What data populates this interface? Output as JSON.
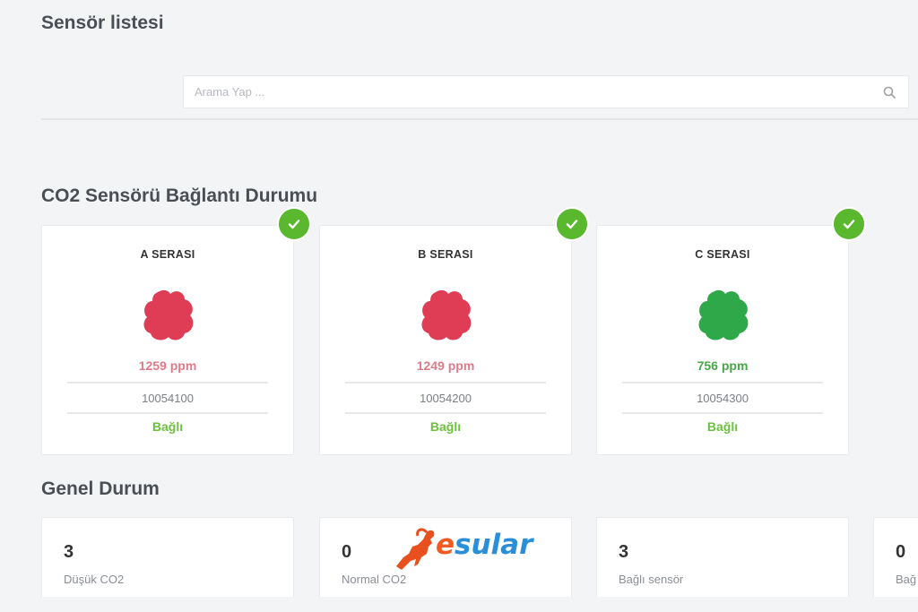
{
  "header": {
    "title": "Sensör listesi"
  },
  "search": {
    "placeholder": "Arama Yap ...",
    "icon": "search-icon"
  },
  "co2_section": {
    "title": "CO2 Sensörü Bağlantı Durumu",
    "cards": [
      {
        "name": "A SERASI",
        "reading": "1259 ppm",
        "serial": "10054100",
        "status": "Bağlı",
        "level_color": "#de3d55",
        "badge": "check-icon"
      },
      {
        "name": "B SERASI",
        "reading": "1249 ppm",
        "serial": "10054200",
        "status": "Bağlı",
        "level_color": "#de3d55",
        "badge": "check-icon"
      },
      {
        "name": "C SERASI",
        "reading": "756 ppm",
        "serial": "10054300",
        "status": "Bağlı",
        "level_color": "#2fa84a",
        "badge": "check-icon"
      }
    ]
  },
  "general_section": {
    "title": "Genel Durum",
    "stats": [
      {
        "value": "3",
        "label": "Düşük CO2"
      },
      {
        "value": "0",
        "label": "Normal CO2"
      },
      {
        "value": "3",
        "label": "Bağlı sensör"
      },
      {
        "value": "0",
        "label": "Bağ"
      }
    ]
  },
  "watermark": {
    "text": "esular",
    "accent_e": "#f05a23",
    "accent_text": "#2a8ed8"
  },
  "colors": {
    "status_ok": "#59b82e",
    "ppm_high": "#e07a8a",
    "ppm_ok": "#45a848"
  }
}
